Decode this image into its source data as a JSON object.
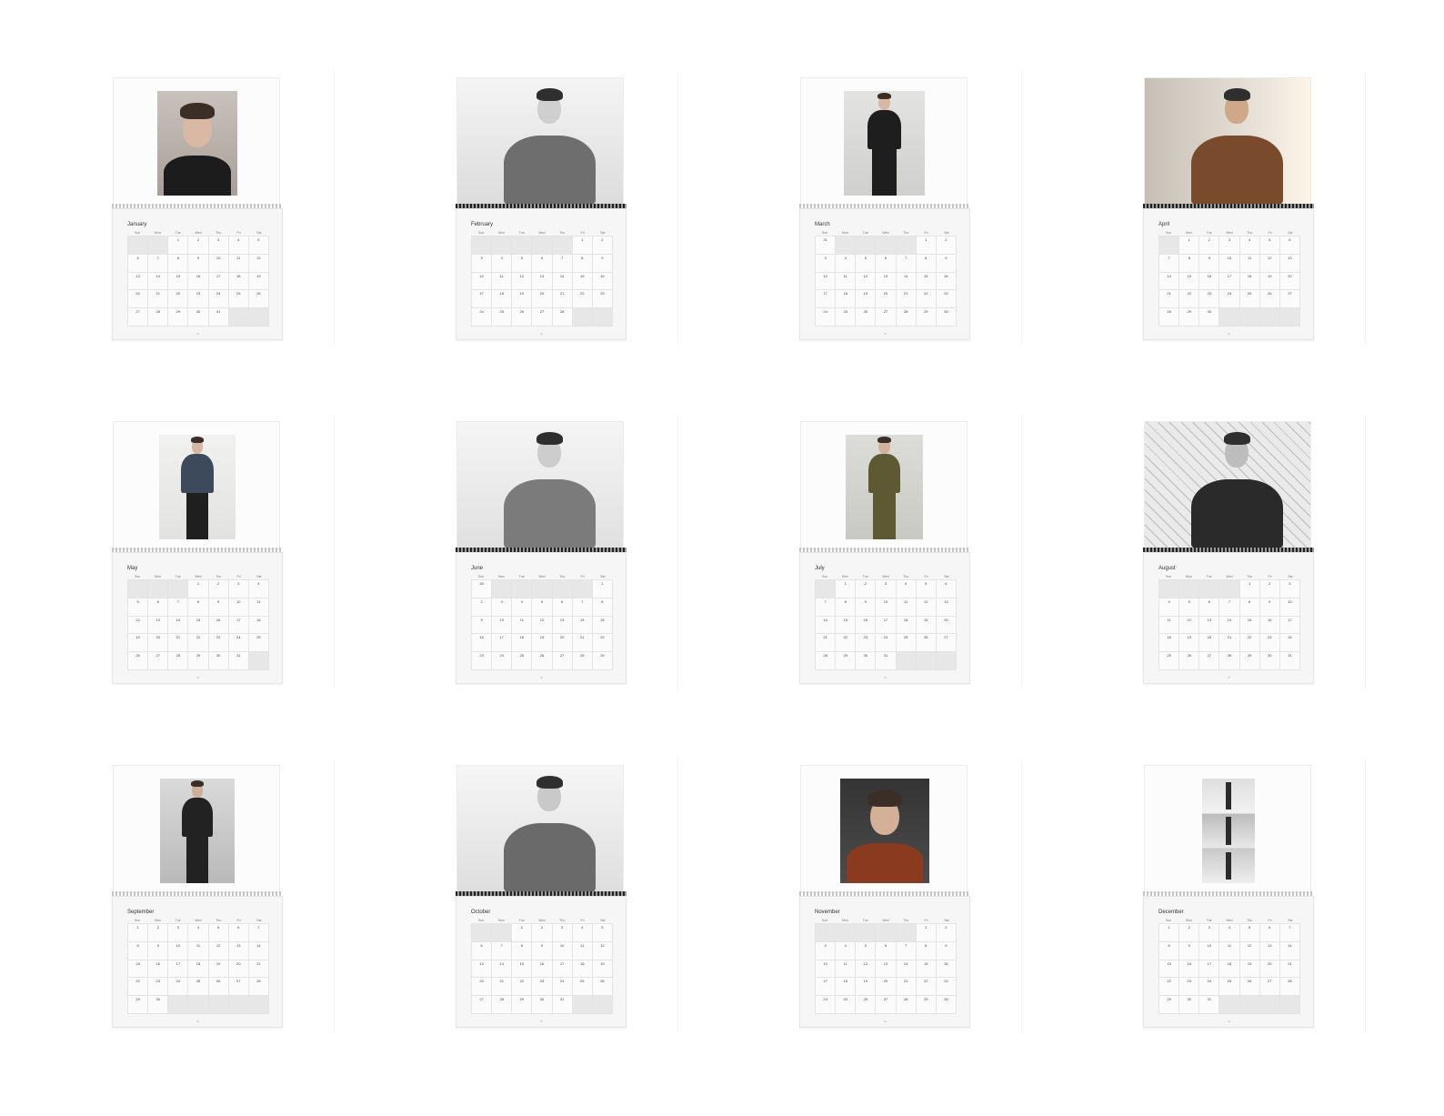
{
  "weekday_labels": [
    "Sun",
    "Mon",
    "Tue",
    "Wed",
    "Thu",
    "Fri",
    "Sat"
  ],
  "months": [
    {
      "name": "January",
      "photo": "portrait-closeup-color",
      "offset": 2,
      "length": 31
    },
    {
      "name": "February",
      "photo": "seated-coat-bw",
      "offset": 5,
      "length": 28
    },
    {
      "name": "March",
      "photo": "standing-leather-jacket",
      "offset": 5,
      "length": 31
    },
    {
      "name": "April",
      "photo": "sunlit-sweater-color",
      "offset": 1,
      "length": 30
    },
    {
      "name": "May",
      "photo": "denim-jacket-full-length",
      "offset": 3,
      "length": 31
    },
    {
      "name": "June",
      "photo": "seated-smiling-bw",
      "offset": 6,
      "length": 30
    },
    {
      "name": "July",
      "photo": "olive-suit-full-length",
      "offset": 1,
      "length": 31
    },
    {
      "name": "August",
      "photo": "chain-fence-bw",
      "offset": 4,
      "length": 31
    },
    {
      "name": "September",
      "photo": "dark-suit-full-length",
      "offset": 0,
      "length": 30
    },
    {
      "name": "October",
      "photo": "seated-tweed-coat-bw",
      "offset": 2,
      "length": 31
    },
    {
      "name": "November",
      "photo": "profile-brown-leather",
      "offset": 5,
      "length": 30
    },
    {
      "name": "December",
      "photo": "triptych-bw",
      "offset": 0,
      "length": 31
    }
  ]
}
